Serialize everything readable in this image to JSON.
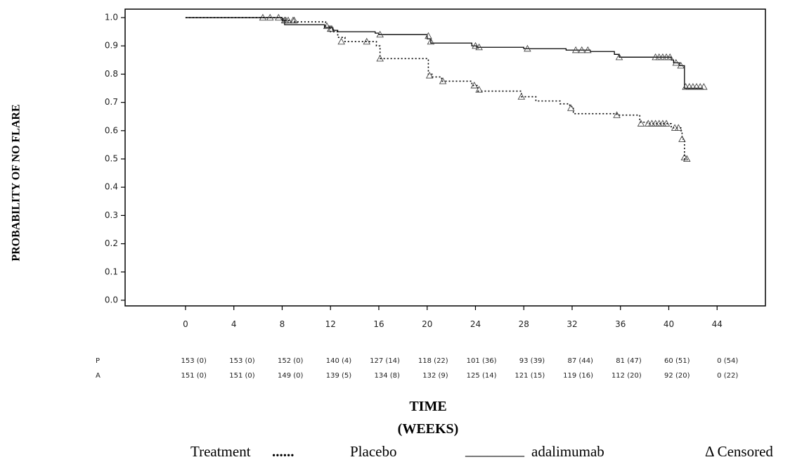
{
  "chart_data": {
    "type": "line",
    "xlabel_lines": [
      "TIME",
      "(WEEKS)"
    ],
    "ylabel": "PROBABILITY OF NO FLARE",
    "xlim": [
      -5,
      48
    ],
    "ylim": [
      -0.02,
      1.03
    ],
    "x_ticks": [
      0,
      4,
      8,
      12,
      16,
      20,
      24,
      28,
      32,
      36,
      40,
      44
    ],
    "x_tick_labels": [
      "0",
      "4",
      "8",
      "12",
      "16",
      "20",
      "24",
      "28",
      "32",
      "36",
      "40",
      "44"
    ],
    "y_ticks": [
      0.0,
      0.1,
      0.2,
      0.3,
      0.4,
      0.5,
      0.6,
      0.7,
      0.8,
      0.9,
      1.0
    ],
    "y_tick_labels": [
      "0.0",
      "0.1",
      "0.2",
      "0.3",
      "0.4",
      "0.5",
      "0.6",
      "0.7",
      "0.8",
      "0.9",
      "1.0"
    ],
    "grid": false,
    "legend_position": "bottom",
    "series": [
      {
        "name": "Placebo",
        "style": "dotted",
        "steps": [
          [
            0,
            1.0
          ],
          [
            8.1,
            0.99
          ],
          [
            8.6,
            0.985
          ],
          [
            11.6,
            0.97
          ],
          [
            12.0,
            0.95
          ],
          [
            12.6,
            0.93
          ],
          [
            13.2,
            0.915
          ],
          [
            15.8,
            0.9
          ],
          [
            16.1,
            0.855
          ],
          [
            20.1,
            0.8
          ],
          [
            20.4,
            0.79
          ],
          [
            21.2,
            0.775
          ],
          [
            23.7,
            0.76
          ],
          [
            24.2,
            0.74
          ],
          [
            27.8,
            0.72
          ],
          [
            29.0,
            0.705
          ],
          [
            31.0,
            0.695
          ],
          [
            31.8,
            0.685
          ],
          [
            32.1,
            0.66
          ],
          [
            35.7,
            0.655
          ],
          [
            37.6,
            0.63
          ],
          [
            38.2,
            0.625
          ],
          [
            40.2,
            0.61
          ],
          [
            41.0,
            0.6
          ],
          [
            41.1,
            0.57
          ],
          [
            41.3,
            0.5
          ]
        ],
        "end_x": 41.5,
        "censored": [
          [
            6.4,
            1.0
          ],
          [
            8.2,
            0.99
          ],
          [
            8.5,
            0.99
          ],
          [
            9.0,
            0.99
          ],
          [
            11.7,
            0.97
          ],
          [
            12.0,
            0.96
          ],
          [
            12.9,
            0.915
          ],
          [
            15.0,
            0.915
          ],
          [
            16.1,
            0.855
          ],
          [
            20.2,
            0.795
          ],
          [
            21.3,
            0.775
          ],
          [
            23.9,
            0.76
          ],
          [
            24.3,
            0.745
          ],
          [
            27.8,
            0.72
          ],
          [
            31.9,
            0.68
          ],
          [
            35.7,
            0.655
          ],
          [
            37.7,
            0.625
          ],
          [
            38.3,
            0.625
          ],
          [
            38.6,
            0.625
          ],
          [
            38.9,
            0.625
          ],
          [
            39.2,
            0.625
          ],
          [
            39.5,
            0.625
          ],
          [
            39.8,
            0.625
          ],
          [
            40.5,
            0.61
          ],
          [
            40.8,
            0.61
          ],
          [
            41.1,
            0.57
          ],
          [
            41.3,
            0.505
          ],
          [
            41.5,
            0.5
          ]
        ]
      },
      {
        "name": "adalimumab",
        "style": "solid",
        "steps": [
          [
            0,
            1.0
          ],
          [
            8.0,
            0.99
          ],
          [
            8.2,
            0.975
          ],
          [
            11.5,
            0.965
          ],
          [
            12.2,
            0.955
          ],
          [
            12.6,
            0.95
          ],
          [
            15.7,
            0.945
          ],
          [
            16.0,
            0.94
          ],
          [
            20.0,
            0.925
          ],
          [
            20.3,
            0.91
          ],
          [
            23.7,
            0.9
          ],
          [
            24.1,
            0.895
          ],
          [
            28.0,
            0.89
          ],
          [
            31.5,
            0.885
          ],
          [
            33.5,
            0.88
          ],
          [
            35.5,
            0.87
          ],
          [
            35.9,
            0.86
          ],
          [
            40.2,
            0.85
          ],
          [
            40.4,
            0.84
          ],
          [
            40.9,
            0.83
          ],
          [
            41.3,
            0.75
          ]
        ],
        "end_x": 42.8,
        "censored": [
          [
            7.0,
            1.0
          ],
          [
            7.7,
            1.0
          ],
          [
            8.3,
            0.99
          ],
          [
            8.9,
            0.99
          ],
          [
            12.1,
            0.96
          ],
          [
            16.1,
            0.94
          ],
          [
            20.1,
            0.935
          ],
          [
            20.3,
            0.915
          ],
          [
            24.0,
            0.9
          ],
          [
            24.3,
            0.895
          ],
          [
            28.3,
            0.89
          ],
          [
            32.3,
            0.885
          ],
          [
            32.8,
            0.885
          ],
          [
            33.3,
            0.885
          ],
          [
            35.9,
            0.86
          ],
          [
            38.9,
            0.86
          ],
          [
            39.2,
            0.86
          ],
          [
            39.5,
            0.86
          ],
          [
            39.8,
            0.86
          ],
          [
            40.1,
            0.86
          ],
          [
            40.6,
            0.84
          ],
          [
            41.0,
            0.83
          ],
          [
            41.4,
            0.755
          ],
          [
            41.7,
            0.755
          ],
          [
            42.0,
            0.755
          ],
          [
            42.3,
            0.755
          ],
          [
            42.6,
            0.755
          ],
          [
            42.9,
            0.755
          ]
        ]
      }
    ],
    "risk_table": {
      "rows": [
        {
          "label": "P",
          "values": [
            "153 (0)",
            "153 (0)",
            "152 (0)",
            "140 (4)",
            "127 (14)",
            "118 (22)",
            "101 (36)",
            "93 (39)",
            "87 (44)",
            "81 (47)",
            "60 (51)",
            "0 (54)"
          ]
        },
        {
          "label": "A",
          "values": [
            "151 (0)",
            "151 (0)",
            "149 (0)",
            "139 (5)",
            "134 (8)",
            "132 (9)",
            "125 (14)",
            "121 (15)",
            "119 (16)",
            "112 (20)",
            "92 (20)",
            "0 (22)"
          ]
        }
      ]
    },
    "legend": {
      "treatment_label": "Treatment",
      "dotted_marker": "......",
      "placebo_label": "Placebo",
      "solid_marker": "________",
      "adalimumab_label": "adalimumab",
      "censored_label": "Δ Censored"
    }
  }
}
